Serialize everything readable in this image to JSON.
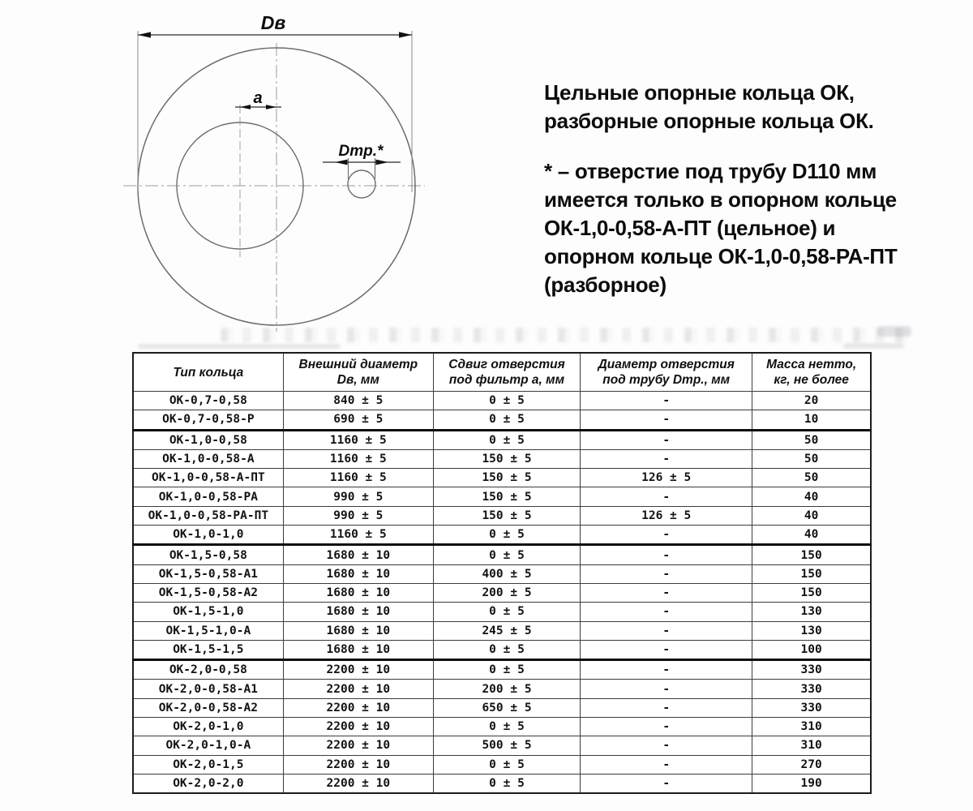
{
  "drawing": {
    "labels": {
      "outer_diameter": "Dв",
      "filter_offset": "а",
      "pipe_hole": "Dтр.*"
    }
  },
  "description": {
    "intro": "Цельные опорные кольца ОК,\nразборные опорные кольца ОК.",
    "note": "* – отверстие под трубу D110 мм\nимеется только в опорном кольце\nОК-1,0-0,58-А-ПТ (цельное) и\nопорном кольце ОК-1,0-0,58-РА-ПТ\n(разборное)"
  },
  "table": {
    "headers": [
      "Тип кольца",
      "Внешний диаметр\nDв, мм",
      "Сдвиг отверстия\nпод фильтр а, мм",
      "Диаметр отверстия\nпод трубу Dтр., мм",
      "Масса нетто,\nкг, не более"
    ],
    "thick_after": [
      2,
      8,
      14
    ],
    "rows": [
      [
        "ОК-0,7-0,58",
        "840 ± 5",
        "0 ± 5",
        "-",
        "20"
      ],
      [
        "ОК-0,7-0,58-Р",
        "690 ± 5",
        "0 ± 5",
        "-",
        "10"
      ],
      [
        "ОК-1,0-0,58",
        "1160 ± 5",
        "0 ± 5",
        "-",
        "50"
      ],
      [
        "ОК-1,0-0,58-А",
        "1160 ± 5",
        "150 ± 5",
        "-",
        "50"
      ],
      [
        "ОК-1,0-0,58-А-ПТ",
        "1160 ± 5",
        "150 ± 5",
        "126 ± 5",
        "50"
      ],
      [
        "ОК-1,0-0,58-РА",
        "990 ± 5",
        "150 ± 5",
        "-",
        "40"
      ],
      [
        "ОК-1,0-0,58-РА-ПТ",
        "990 ± 5",
        "150 ± 5",
        "126 ± 5",
        "40"
      ],
      [
        "ОК-1,0-1,0",
        "1160 ± 5",
        "0 ± 5",
        "-",
        "40"
      ],
      [
        "ОК-1,5-0,58",
        "1680 ± 10",
        "0 ± 5",
        "-",
        "150"
      ],
      [
        "ОК-1,5-0,58-А1",
        "1680 ± 10",
        "400 ± 5",
        "-",
        "150"
      ],
      [
        "ОК-1,5-0,58-А2",
        "1680 ± 10",
        "200 ± 5",
        "-",
        "150"
      ],
      [
        "ОК-1,5-1,0",
        "1680 ± 10",
        "0 ± 5",
        "-",
        "130"
      ],
      [
        "ОК-1,5-1,0-А",
        "1680 ± 10",
        "245 ± 5",
        "-",
        "130"
      ],
      [
        "ОК-1,5-1,5",
        "1680 ± 10",
        "0 ± 5",
        "-",
        "100"
      ],
      [
        "ОК-2,0-0,58",
        "2200 ± 10",
        "0 ± 5",
        "-",
        "330"
      ],
      [
        "ОК-2,0-0,58-А1",
        "2200 ± 10",
        "200 ± 5",
        "-",
        "330"
      ],
      [
        "ОК-2,0-0,58-А2",
        "2200 ± 10",
        "650 ± 5",
        "-",
        "330"
      ],
      [
        "ОК-2,0-1,0",
        "2200 ± 10",
        "0 ± 5",
        "-",
        "310"
      ],
      [
        "ОК-2,0-1,0-А",
        "2200 ± 10",
        "500 ± 5",
        "-",
        "310"
      ],
      [
        "ОК-2,0-1,5",
        "2200 ± 10",
        "0 ± 5",
        "-",
        "270"
      ],
      [
        "ОК-2,0-2,0",
        "2200 ± 10",
        "0 ± 5",
        "-",
        "190"
      ]
    ]
  }
}
